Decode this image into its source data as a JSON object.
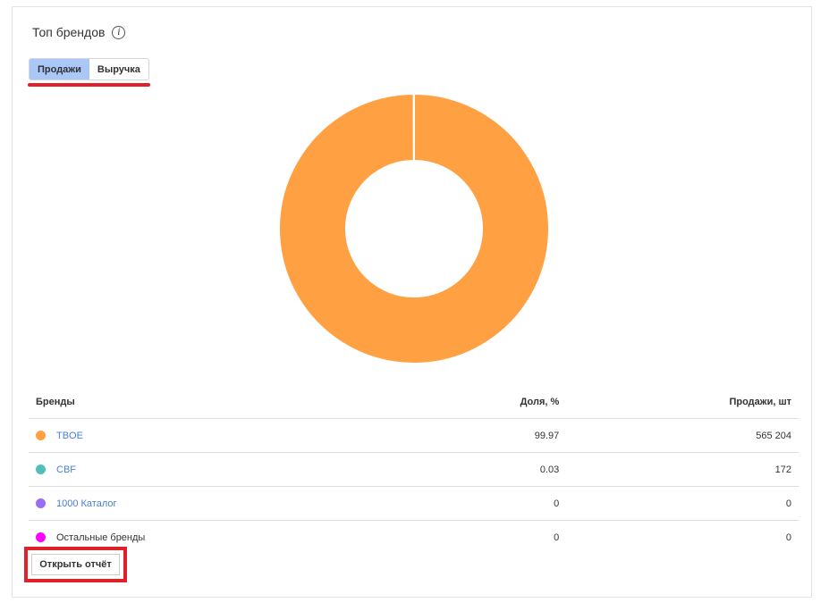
{
  "title": "Топ брендов",
  "info_icon": "info-icon",
  "tabs": [
    {
      "label": "Продажи",
      "active": true
    },
    {
      "label": "Выручка",
      "active": false
    }
  ],
  "table": {
    "headers": [
      "Бренды",
      "Доля, %",
      "Продажи, шт"
    ],
    "rows": [
      {
        "brand": "TBOE",
        "share": "99.97",
        "sales": "565 204",
        "color": "#ffa143",
        "link": true
      },
      {
        "brand": "CBF",
        "share": "0.03",
        "sales": "172",
        "color": "#4dbfbf",
        "link": true
      },
      {
        "brand": "1000 Каталог",
        "share": "0",
        "sales": "0",
        "color": "#9b6cf5",
        "link": true
      },
      {
        "brand": "Остальные бренды",
        "share": "0",
        "sales": "0",
        "color": "#ff00ff",
        "link": false
      }
    ]
  },
  "open_report": "Открыть отчёт",
  "chart_data": {
    "type": "pie",
    "donut": true,
    "categories": [
      "TBOE",
      "CBF",
      "1000 Каталог",
      "Остальные бренды"
    ],
    "values": [
      99.97,
      0.03,
      0,
      0
    ],
    "colors": [
      "#ffa143",
      "#4dbfbf",
      "#9b6cf5",
      "#ff00ff"
    ]
  }
}
